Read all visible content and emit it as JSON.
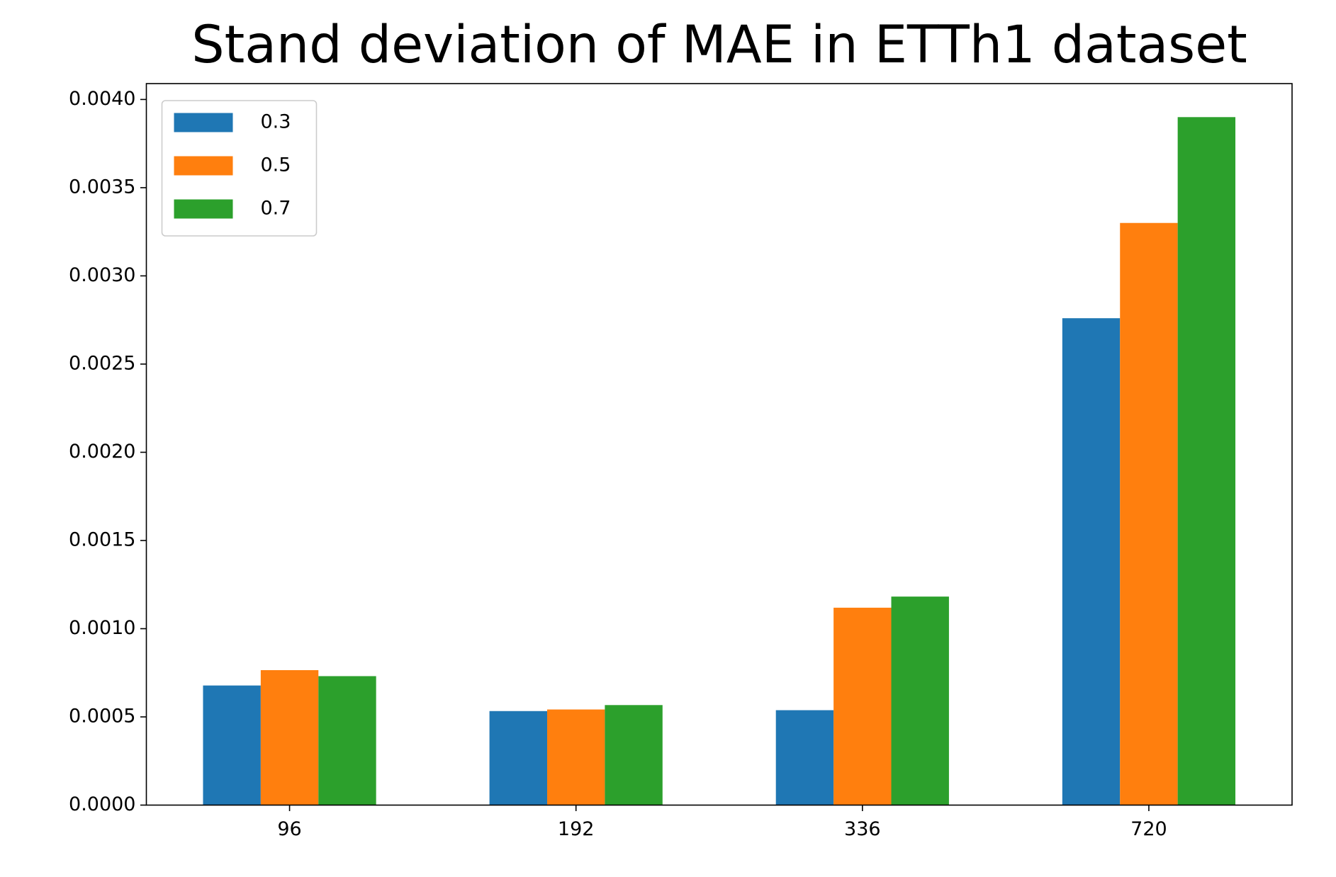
{
  "chart_data": {
    "type": "bar",
    "title": "Stand deviation of MAE in ETTh1 dataset",
    "categories": [
      "96",
      "192",
      "336",
      "720"
    ],
    "series": [
      {
        "name": "0.3",
        "color": "#1f77b4",
        "values": [
          0.000678,
          0.000533,
          0.000538,
          0.00276
        ]
      },
      {
        "name": "0.5",
        "color": "#ff7f0e",
        "values": [
          0.000765,
          0.000542,
          0.001119,
          0.0033
        ]
      },
      {
        "name": "0.7",
        "color": "#2ca02c",
        "values": [
          0.000731,
          0.000567,
          0.001182,
          0.0039
        ]
      }
    ],
    "ylim": [
      0,
      0.00409
    ],
    "yticks": [
      {
        "value": 0,
        "label": "0.0000"
      },
      {
        "value": 0.0005,
        "label": "0.0005"
      },
      {
        "value": 0.001,
        "label": "0.0010"
      },
      {
        "value": 0.0015,
        "label": "0.0015"
      },
      {
        "value": 0.002,
        "label": "0.0020"
      },
      {
        "value": 0.0025,
        "label": "0.0025"
      },
      {
        "value": 0.003,
        "label": "0.0030"
      },
      {
        "value": 0.0035,
        "label": "0.0035"
      },
      {
        "value": 0.004,
        "label": "0.0040"
      }
    ],
    "legend": "upper left"
  }
}
